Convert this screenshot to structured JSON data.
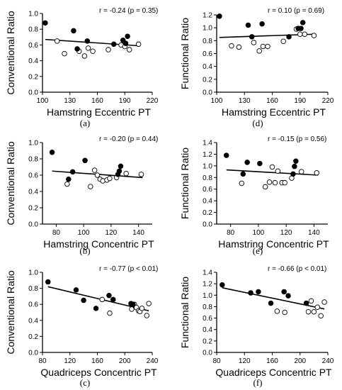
{
  "chart_data": [
    {
      "type": "scatter",
      "panel_label": "(a)",
      "stat": "r = -0.24 (p = 0.35)",
      "xlabel": "Hamstring Eccentric PT",
      "ylabel": "Conventional Ratio",
      "xlim": [
        100,
        220
      ],
      "ylim": [
        0.0,
        1.0
      ],
      "xticks": [
        "100",
        "130",
        "160",
        "190",
        "220"
      ],
      "yticks": [
        "0.0",
        "0.2",
        "0.4",
        "0.6",
        "0.8",
        "1.0"
      ],
      "regression": {
        "x": [
          103,
          205
        ],
        "y": [
          0.67,
          0.59
        ]
      },
      "filled": {
        "x": [
          103,
          134,
          138,
          149,
          178,
          188,
          191,
          193
        ],
        "y": [
          0.88,
          0.78,
          0.55,
          0.65,
          0.61,
          0.66,
          0.62,
          0.71
        ]
      },
      "open": {
        "x": [
          116,
          124,
          140,
          146,
          150,
          155,
          172,
          186,
          190,
          195,
          205
        ],
        "y": [
          0.65,
          0.49,
          0.52,
          0.46,
          0.56,
          0.52,
          0.54,
          0.6,
          0.58,
          0.54,
          0.61
        ]
      }
    },
    {
      "type": "scatter",
      "panel_label": "(d)",
      "stat": "r = 0.10 (p = 0.69)",
      "xlabel": "Hamstring Eccentric PT",
      "ylabel": "Functional Ratio",
      "xlim": [
        100,
        220
      ],
      "ylim": [
        0.0,
        1.2
      ],
      "xticks": [
        "100",
        "130",
        "160",
        "190",
        "220"
      ],
      "yticks": [
        "0.0",
        "0.2",
        "0.4",
        "0.6",
        "0.8",
        "1.0",
        "1.2"
      ],
      "regression": {
        "x": [
          103,
          205
        ],
        "y": [
          0.85,
          0.9
        ]
      },
      "filled": {
        "x": [
          103,
          134,
          138,
          149,
          178,
          188,
          191,
          193
        ],
        "y": [
          1.18,
          1.04,
          0.86,
          1.06,
          0.86,
          0.99,
          0.99,
          1.08
        ]
      },
      "open": {
        "x": [
          116,
          124,
          140,
          146,
          150,
          155,
          172,
          186,
          190,
          195,
          205
        ],
        "y": [
          0.72,
          0.7,
          0.77,
          0.64,
          0.71,
          0.71,
          0.79,
          0.98,
          0.9,
          0.9,
          0.88
        ]
      }
    },
    {
      "type": "scatter",
      "panel_label": "(b)",
      "stat": "r = -0.20 (p = 0.44)",
      "xlabel": "Hamstring Concentric PT",
      "ylabel": "Conventional Ratio",
      "xlim": [
        70,
        150
      ],
      "ylim": [
        0.0,
        1.0
      ],
      "xticks": [
        "80",
        "100",
        "120",
        "140"
      ],
      "yticks": [
        "0.0",
        "0.2",
        "0.4",
        "0.6",
        "0.8",
        "1.0"
      ],
      "regression": {
        "x": [
          77,
          143
        ],
        "y": [
          0.65,
          0.57
        ]
      },
      "filled": {
        "x": [
          77,
          89,
          92,
          101,
          125,
          126,
          127
        ],
        "y": [
          0.88,
          0.55,
          0.64,
          0.78,
          0.61,
          0.65,
          0.71
        ]
      },
      "open": {
        "x": [
          88,
          105,
          108,
          110,
          112,
          114,
          117,
          119,
          124,
          131,
          142
        ],
        "y": [
          0.49,
          0.46,
          0.66,
          0.6,
          0.55,
          0.53,
          0.54,
          0.56,
          0.57,
          0.62,
          0.61
        ]
      }
    },
    {
      "type": "scatter",
      "panel_label": "(e)",
      "stat": "r = -0.15 (p = 0.56)",
      "xlabel": "Hamstring Concentric PT",
      "ylabel": "Functional Ratio",
      "xlim": [
        70,
        150
      ],
      "ylim": [
        0.0,
        1.4
      ],
      "xticks": [
        "80",
        "100",
        "120",
        "140"
      ],
      "yticks": [
        "0.0",
        "0.2",
        "0.4",
        "0.6",
        "0.8",
        "1.0",
        "1.2",
        "1.4"
      ],
      "regression": {
        "x": [
          77,
          143
        ],
        "y": [
          0.93,
          0.84
        ]
      },
      "filled": {
        "x": [
          77,
          89,
          92,
          101,
          125,
          126,
          127
        ],
        "y": [
          1.18,
          0.86,
          1.06,
          1.04,
          0.86,
          0.99,
          1.08
        ]
      },
      "open": {
        "x": [
          88,
          105,
          108,
          110,
          112,
          114,
          117,
          119,
          124,
          131,
          142
        ],
        "y": [
          0.7,
          0.64,
          0.72,
          0.98,
          0.71,
          0.91,
          0.71,
          0.71,
          0.79,
          0.9,
          0.88
        ]
      }
    },
    {
      "type": "scatter",
      "panel_label": "(c)",
      "stat": "r = -0.77 (p < 0.01)",
      "xlabel": "Quadriceps Concentric PT",
      "ylabel": "Conventional Ratio",
      "xlim": [
        80,
        240
      ],
      "ylim": [
        0.0,
        1.0
      ],
      "xticks": [
        "80",
        "120",
        "160",
        "200",
        "240"
      ],
      "yticks": [
        "0.0",
        "0.2",
        "0.4",
        "0.6",
        "0.8",
        "1.0"
      ],
      "regression": {
        "x": [
          88,
          235
        ],
        "y": [
          0.82,
          0.52
        ]
      },
      "filled": {
        "x": [
          88,
          129,
          140,
          158,
          177,
          183,
          209,
          212
        ],
        "y": [
          0.88,
          0.78,
          0.65,
          0.55,
          0.71,
          0.66,
          0.61,
          0.6
        ]
      },
      "open": {
        "x": [
          167,
          178,
          210,
          214,
          217,
          220,
          222,
          225,
          232,
          235
        ],
        "y": [
          0.66,
          0.49,
          0.54,
          0.6,
          0.56,
          0.52,
          0.51,
          0.55,
          0.46,
          0.61
        ]
      }
    },
    {
      "type": "scatter",
      "panel_label": "(f)",
      "stat": "r = -0.66 (p < 0.01)",
      "xlabel": "Quadriceps Concentric PT",
      "ylabel": "Functional Ratio",
      "xlim": [
        80,
        240
      ],
      "ylim": [
        0.0,
        1.4
      ],
      "xticks": [
        "80",
        "120",
        "160",
        "200",
        "240"
      ],
      "yticks": [
        "0.0",
        "0.2",
        "0.4",
        "0.6",
        "0.8",
        "1.0",
        "1.2",
        "1.4"
      ],
      "regression": {
        "x": [
          88,
          235
        ],
        "y": [
          1.13,
          0.76
        ]
      },
      "filled": {
        "x": [
          88,
          129,
          140,
          158,
          177,
          183,
          209
        ],
        "y": [
          1.18,
          1.04,
          1.06,
          0.86,
          1.06,
          0.99,
          0.86
        ]
      },
      "open": {
        "x": [
          167,
          178,
          212,
          216,
          220,
          225,
          230,
          235
        ],
        "y": [
          0.72,
          0.7,
          0.71,
          0.9,
          0.71,
          0.79,
          0.64,
          0.88
        ]
      }
    }
  ]
}
